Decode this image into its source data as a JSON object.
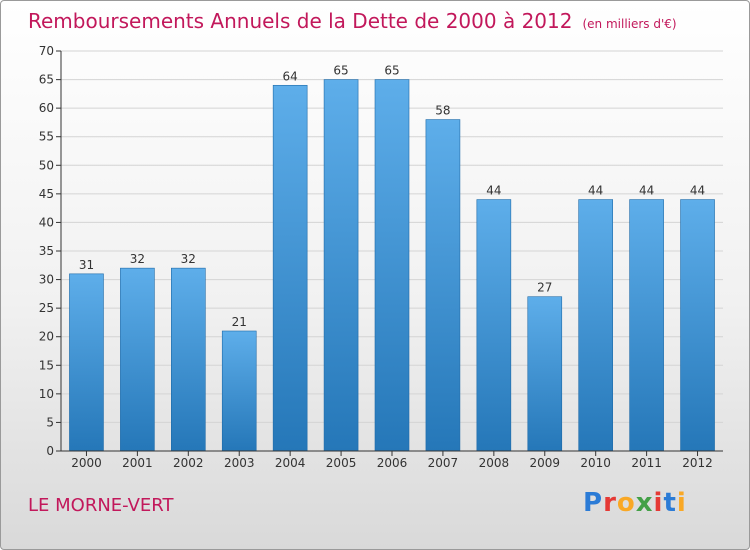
{
  "title": "Remboursements Annuels de la Dette de 2000 à 2012",
  "subtitle": "(en milliers d'€)",
  "place_label": "LE MORNE-VERT",
  "brand": {
    "letters": [
      "P",
      "r",
      "o",
      "x",
      "i",
      "t",
      "i"
    ],
    "colors": [
      "#2b7bd6",
      "#e53935",
      "#f9a825",
      "#43a047",
      "#e53935",
      "#2b7bd6",
      "#f9a825"
    ]
  },
  "colors": {
    "title": "#c2185b",
    "bar_light": "#5eaeea",
    "bar_dark": "#2577b8",
    "bar_edge": "#1e6aa8",
    "grid": "#d4d4d4",
    "axis": "#333333"
  },
  "chart_data": {
    "type": "bar",
    "categories": [
      "2000",
      "2001",
      "2002",
      "2003",
      "2004",
      "2005",
      "2006",
      "2007",
      "2008",
      "2009",
      "2010",
      "2011",
      "2012"
    ],
    "values": [
      31,
      32,
      32,
      21,
      64,
      65,
      65,
      58,
      44,
      27,
      44,
      44,
      44
    ],
    "ylim": [
      0,
      70
    ],
    "yticks": [
      0,
      5,
      10,
      15,
      20,
      25,
      30,
      35,
      40,
      45,
      50,
      55,
      60,
      65,
      70
    ],
    "grid": true,
    "data_labels": true
  }
}
